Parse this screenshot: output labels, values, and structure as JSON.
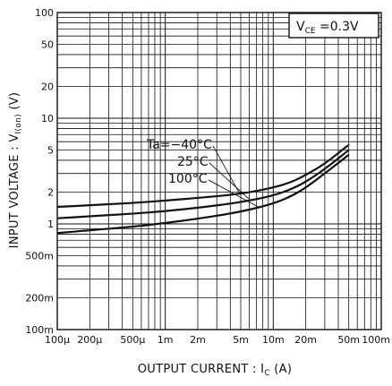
{
  "chart_data": {
    "type": "line",
    "xscale": "log",
    "yscale": "log",
    "xlim": [
      0.0001,
      0.1
    ],
    "ylim": [
      0.1,
      100
    ],
    "grid": true,
    "xlabel": {
      "main": "OUTPUT  CURRENT : I",
      "sub": "C",
      "unit": " (A)"
    },
    "ylabel": {
      "main": "INPUT VOLTAGE : V",
      "sub": "I(on)",
      "unit": " (V)"
    },
    "condition": {
      "main": "V",
      "sub": "CE",
      "rest": " =0.3V"
    },
    "xticks": [
      {
        "value": 0.0001,
        "label": "100μ"
      },
      {
        "value": 0.0002,
        "label": "200μ"
      },
      {
        "value": 0.0005,
        "label": "500μ"
      },
      {
        "value": 0.001,
        "label": "1m"
      },
      {
        "value": 0.002,
        "label": "2m"
      },
      {
        "value": 0.005,
        "label": "5m"
      },
      {
        "value": 0.01,
        "label": "10m"
      },
      {
        "value": 0.02,
        "label": "20m"
      },
      {
        "value": 0.05,
        "label": "50m"
      },
      {
        "value": 0.1,
        "label": "100m"
      }
    ],
    "yticks": [
      {
        "value": 0.1,
        "label": "100m"
      },
      {
        "value": 0.2,
        "label": "200m"
      },
      {
        "value": 0.5,
        "label": "500m"
      },
      {
        "value": 1,
        "label": "1"
      },
      {
        "value": 2,
        "label": "2"
      },
      {
        "value": 5,
        "label": "5"
      },
      {
        "value": 10,
        "label": "10"
      },
      {
        "value": 20,
        "label": "20"
      },
      {
        "value": 50,
        "label": "50"
      },
      {
        "value": 100,
        "label": "100"
      }
    ],
    "series": [
      {
        "name": "Ta=−40°C",
        "x": [
          0.0001,
          0.0002,
          0.0005,
          0.001,
          0.002,
          0.005,
          0.01,
          0.015,
          0.02,
          0.03,
          0.05
        ],
        "y": [
          1.45,
          1.5,
          1.58,
          1.66,
          1.76,
          1.92,
          2.2,
          2.5,
          2.9,
          3.7,
          5.6
        ]
      },
      {
        "name": "25°C",
        "x": [
          0.0001,
          0.0002,
          0.0005,
          0.001,
          0.002,
          0.005,
          0.01,
          0.015,
          0.02,
          0.03,
          0.05
        ],
        "y": [
          1.13,
          1.18,
          1.25,
          1.32,
          1.42,
          1.6,
          1.85,
          2.15,
          2.5,
          3.3,
          5.0
        ]
      },
      {
        "name": "100°C",
        "x": [
          0.0001,
          0.0002,
          0.0005,
          0.001,
          0.002,
          0.005,
          0.01,
          0.015,
          0.02,
          0.03,
          0.05
        ],
        "y": [
          0.82,
          0.87,
          0.94,
          1.02,
          1.12,
          1.3,
          1.55,
          1.85,
          2.2,
          3.0,
          4.5
        ]
      }
    ],
    "leader_targets": [
      {
        "x": 0.0049,
        "y": 1.92
      },
      {
        "x": 0.0062,
        "y": 1.66
      },
      {
        "x": 0.0075,
        "y": 1.42
      }
    ]
  }
}
